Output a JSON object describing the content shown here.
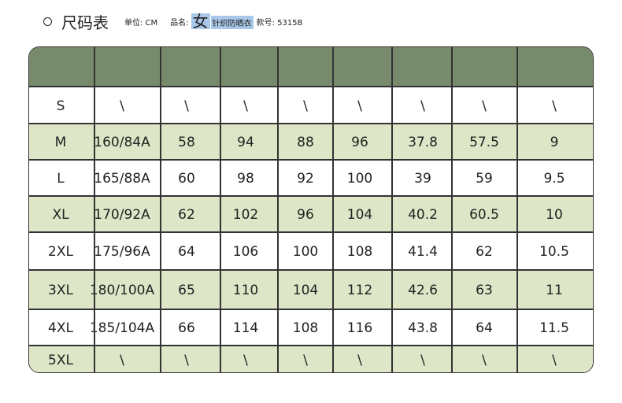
{
  "header": {
    "title": "尺码表",
    "unit": "单位: CM",
    "product_label": "品名:",
    "gender": "女",
    "product": "针织防晒衣",
    "style_no": "款号: 5315B"
  },
  "colors": {
    "header_green": "#778b6c",
    "stripe_green": "#dde6c6",
    "highlight_blue": "#a9c7e8"
  },
  "table": {
    "columns": [
      "",
      "",
      "",
      "",
      "",
      "",
      "",
      "",
      ""
    ],
    "rows": [
      [
        "S",
        "\\",
        "\\",
        "\\",
        "\\",
        "\\",
        "\\",
        "\\",
        "\\"
      ],
      [
        "M",
        "160/84A",
        "58",
        "94",
        "88",
        "96",
        "37.8",
        "57.5",
        "9"
      ],
      [
        "L",
        "165/88A",
        "60",
        "98",
        "92",
        "100",
        "39",
        "59",
        "9.5"
      ],
      [
        "XL",
        "170/92A",
        "62",
        "102",
        "96",
        "104",
        "40.2",
        "60.5",
        "10"
      ],
      [
        "2XL",
        "175/96A",
        "64",
        "106",
        "100",
        "108",
        "41.4",
        "62",
        "10.5"
      ],
      [
        "3XL",
        "180/100A",
        "65",
        "110",
        "104",
        "112",
        "42.6",
        "63",
        "11"
      ],
      [
        "4XL",
        "185/104A",
        "66",
        "114",
        "108",
        "116",
        "43.8",
        "64",
        "11.5"
      ],
      [
        "5XL",
        "\\",
        "\\",
        "\\",
        "\\",
        "\\",
        "\\",
        "\\",
        "\\"
      ]
    ]
  }
}
